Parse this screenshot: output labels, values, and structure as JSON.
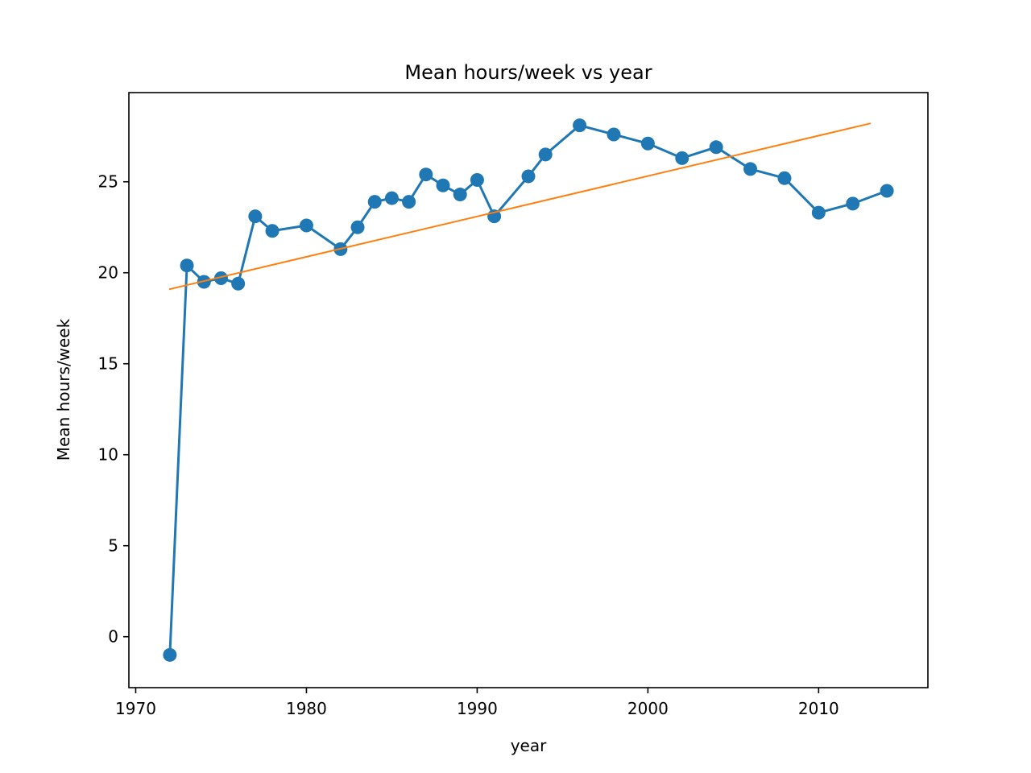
{
  "chart_data": {
    "type": "line",
    "title": "Mean hours/week vs year",
    "xlabel": "year",
    "ylabel": "Mean hours/week",
    "xlim": [
      1969.6,
      2016.4
    ],
    "ylim": [
      -2.8,
      29.9
    ],
    "xticks": [
      1970,
      1980,
      1990,
      2000,
      2010
    ],
    "yticks": [
      0,
      5,
      10,
      15,
      20,
      25
    ],
    "grid": false,
    "series": [
      {
        "color": "#1f77b4",
        "marker": "circle",
        "x": [
          1972,
          1973,
          1974,
          1975,
          1976,
          1977,
          1978,
          1980,
          1982,
          1983,
          1984,
          1985,
          1986,
          1987,
          1988,
          1989,
          1990,
          1991,
          1993,
          1994,
          1996,
          1998,
          2000,
          2002,
          2004,
          2006,
          2008,
          2010,
          2012,
          2014
        ],
        "y": [
          -1.0,
          20.4,
          19.5,
          19.7,
          19.4,
          23.1,
          22.3,
          22.6,
          21.3,
          22.5,
          23.9,
          24.1,
          23.9,
          25.4,
          24.8,
          24.3,
          25.1,
          23.1,
          25.3,
          26.5,
          28.1,
          27.6,
          27.1,
          26.3,
          26.9,
          25.7,
          25.2,
          23.3,
          23.8,
          24.5
        ]
      },
      {
        "color": "#ff7f0e",
        "marker": "none",
        "x": [
          1972,
          2013
        ],
        "y": [
          19.1,
          28.2
        ]
      }
    ]
  }
}
